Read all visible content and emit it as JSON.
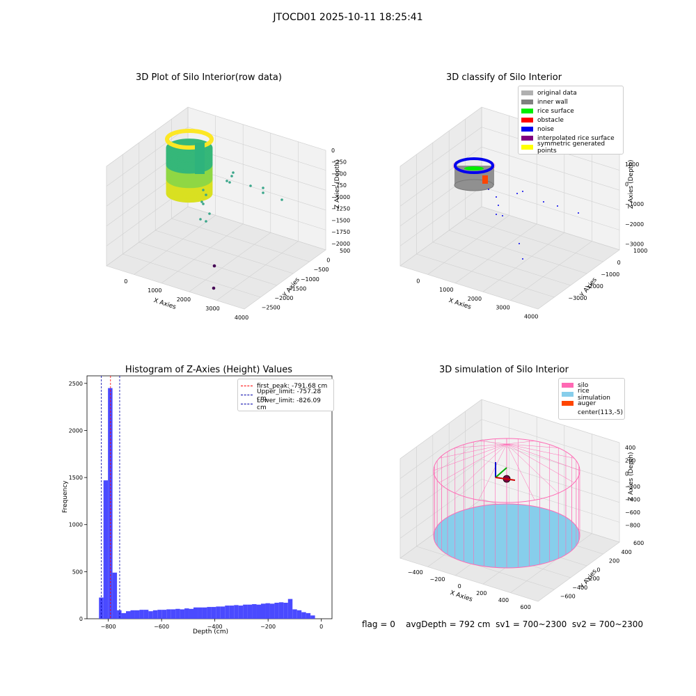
{
  "figure_title": "JTOCD01 2025-10-11 18:25:41",
  "panels": {
    "raw": {
      "title": "3D Plot of Silo Interior(row data)",
      "xlabel": "X Axies",
      "ylabel": "Y Axies",
      "zlabel": "Z Axies (Depth)",
      "xticks": [
        "0",
        "1000",
        "2000",
        "3000",
        "4000"
      ],
      "yticks": [
        "500",
        "0",
        "−500",
        "−1000",
        "−1500",
        "−2000",
        "−2500"
      ],
      "zticks": [
        "0",
        "−250",
        "−500",
        "−750",
        "−1000",
        "−1250",
        "−1500",
        "−1750",
        "−2000"
      ]
    },
    "classify": {
      "title": "3D classify of Silo Interior",
      "xlabel": "X Axies",
      "ylabel": "Y Axies",
      "zlabel": "Z Axies (Depth)",
      "xticks": [
        "0",
        "1000",
        "2000",
        "3000",
        "4000"
      ],
      "yticks": [
        "1000",
        "0",
        "−1000",
        "−2000",
        "−3000"
      ],
      "zticks": [
        "1000",
        "0",
        "−1000",
        "−2000",
        "−3000"
      ],
      "legend": [
        {
          "label": "original data",
          "color": "#b0b0b0"
        },
        {
          "label": "inner wall",
          "color": "#808080"
        },
        {
          "label": "rice surface",
          "color": "#00ee00"
        },
        {
          "label": "obstacle",
          "color": "#ff0000"
        },
        {
          "label": "noise",
          "color": "#0000ee"
        },
        {
          "label": "interpolated rice surface",
          "color": "#800080"
        },
        {
          "label": "symmetric generated points",
          "color": "#ffff00"
        }
      ]
    },
    "simulation": {
      "title": "3D simulation of Silo Interior",
      "xlabel": "X Axies",
      "ylabel": "Y Axies",
      "zlabel": "Z Axies (Depth)",
      "xticks": [
        "−400",
        "−200",
        "0",
        "200",
        "400",
        "600"
      ],
      "yticks": [
        "600",
        "400",
        "200",
        "0",
        "−200",
        "−400",
        "−600"
      ],
      "zticks": [
        "400",
        "200",
        "0",
        "−200",
        "−400",
        "−600",
        "−800"
      ],
      "legend": [
        {
          "label": "silo",
          "color": "#ff69b4"
        },
        {
          "label": "rice simulation",
          "color": "#87ceeb"
        },
        {
          "label": "auger",
          "color": "#ff4500"
        },
        {
          "label": "center(113,-5)",
          "color": "#ffffff"
        }
      ]
    }
  },
  "chart_data": [
    {
      "type": "bar",
      "title": "Histogram of Z-Axies (Height) Values",
      "xlabel": "Depth (cm)",
      "ylabel": "Frequency",
      "xlim": [
        -880,
        40
      ],
      "ylim": [
        0,
        2580
      ],
      "xticks": [
        -800,
        -600,
        -400,
        -200,
        0
      ],
      "xtick_labels": [
        "−800",
        "−600",
        "−400",
        "−200",
        "0"
      ],
      "yticks": [
        0,
        500,
        1000,
        1500,
        2000,
        2500
      ],
      "bar_color": "#4a4aff",
      "bins_start": -835,
      "bin_width": 16.9,
      "values": [
        225,
        1470,
        2450,
        490,
        90,
        60,
        80,
        90,
        90,
        95,
        95,
        80,
        90,
        95,
        95,
        100,
        100,
        105,
        100,
        110,
        105,
        120,
        120,
        120,
        125,
        125,
        130,
        130,
        140,
        140,
        145,
        140,
        150,
        150,
        155,
        150,
        160,
        165,
        160,
        170,
        175,
        170,
        210,
        100,
        90,
        70,
        60,
        35
      ],
      "vlines": [
        {
          "label": "first_peak: -791.68 cm",
          "x": -791.68,
          "color": "#ff0000"
        },
        {
          "label": "Upper_limit: -757.28 cm",
          "x": -757.28,
          "color": "#0000aa"
        },
        {
          "label": "Lower_limit: -826.09 cm",
          "x": -826.09,
          "color": "#0000aa"
        }
      ],
      "legend_position": "upper right"
    }
  ],
  "status": {
    "flag": "flag = 0",
    "avg_depth": "avgDepth = 792 cm",
    "sv1": "sv1 = 700~2300",
    "sv2": "sv2 = 700~2300"
  }
}
